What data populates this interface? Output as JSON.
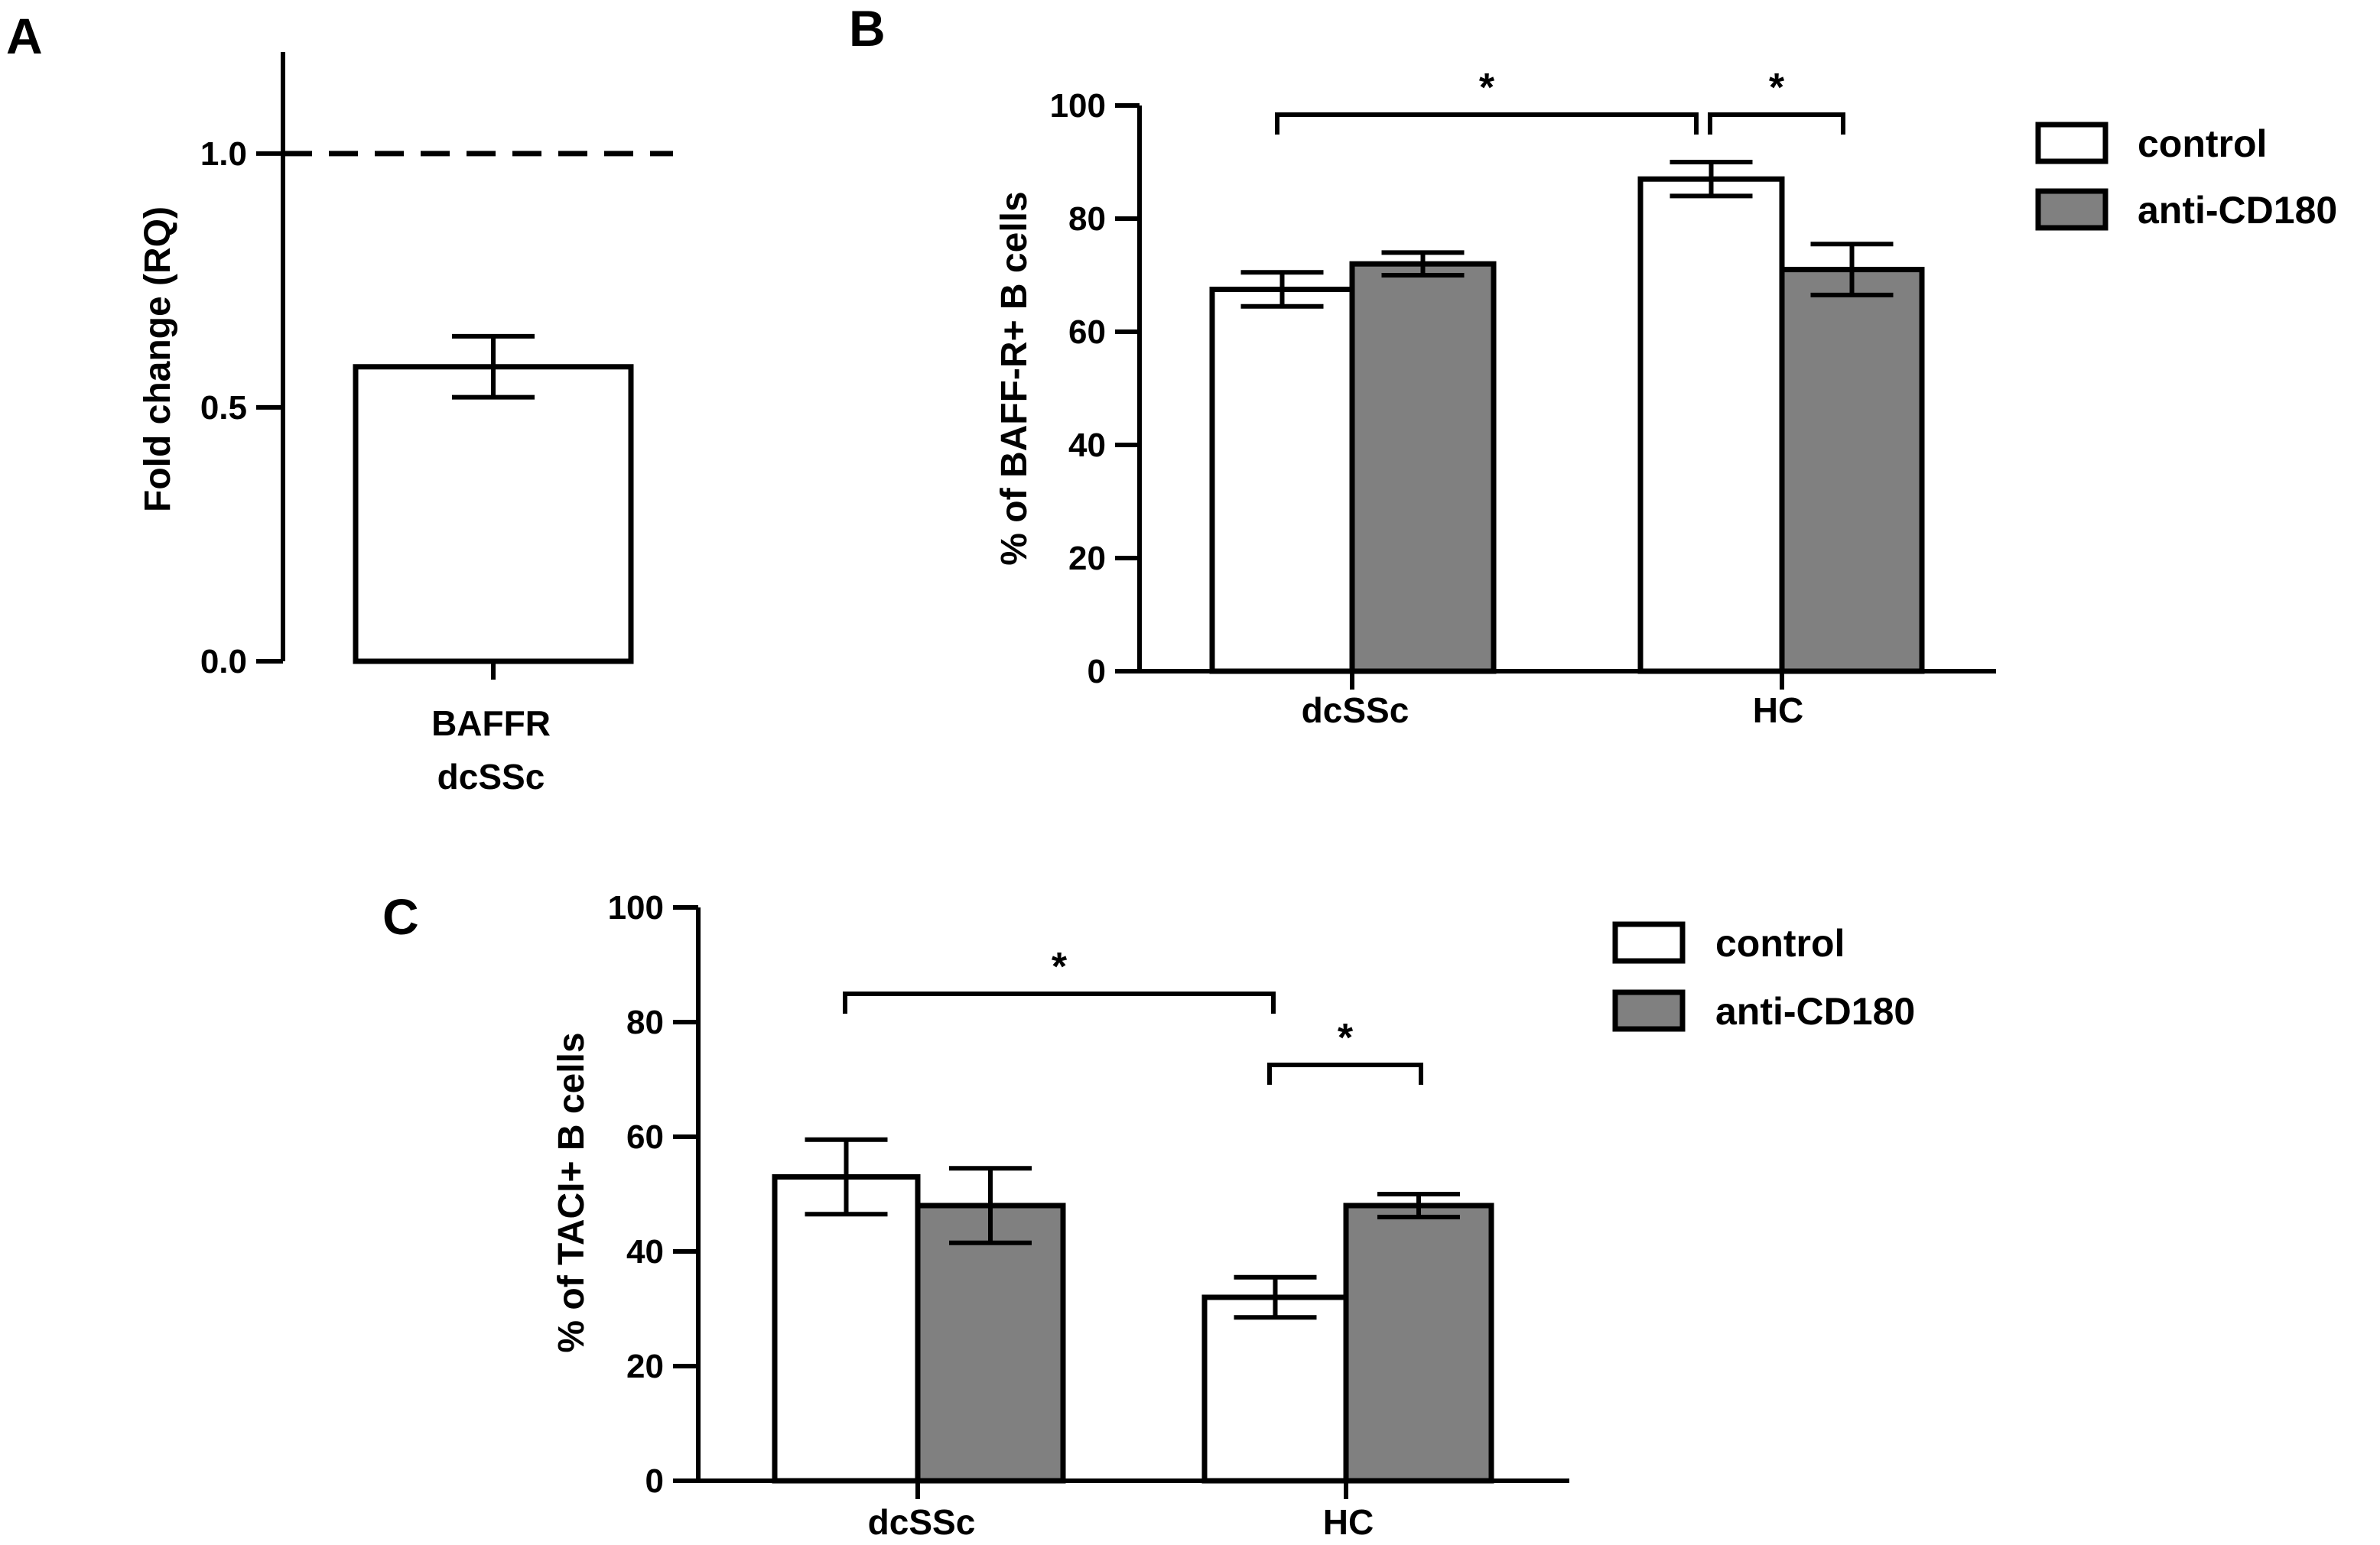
{
  "chart_data": [
    {
      "panel": "A",
      "type": "bar",
      "ylabel": "Fold change (RQ)",
      "ylim": [
        0,
        1.2
      ],
      "yticks": [
        "0.0",
        "0.5",
        "1.0"
      ],
      "reference_line": 1.0,
      "categories": [
        [
          "BAFFR",
          "dcSSc"
        ]
      ],
      "series": [
        {
          "name": "BAFFR dcSSc",
          "values": [
            0.58
          ],
          "errors": [
            0.06
          ],
          "color": "#ffffff"
        }
      ]
    },
    {
      "panel": "B",
      "type": "bar",
      "ylabel": "% of BAFF-R+ B cells",
      "ylim": [
        0,
        100
      ],
      "yticks": [
        "0",
        "20",
        "40",
        "60",
        "80",
        "100"
      ],
      "categories": [
        "dcSSc",
        "HC"
      ],
      "series": [
        {
          "name": "control",
          "values": [
            67.5,
            87
          ],
          "errors": [
            3,
            3
          ],
          "color": "#ffffff"
        },
        {
          "name": "anti-CD180",
          "values": [
            72,
            71
          ],
          "errors": [
            2,
            4.5
          ],
          "color": "#808080"
        }
      ],
      "significance": [
        {
          "from": "dcSSc control",
          "to": "HC control",
          "label": "*"
        },
        {
          "from": "HC control",
          "to": "HC anti-CD180",
          "label": "*"
        }
      ],
      "legend": [
        "control",
        "anti-CD180"
      ]
    },
    {
      "panel": "C",
      "type": "bar",
      "ylabel": "% of TACI+ B cells",
      "ylim": [
        0,
        100
      ],
      "yticks": [
        "0",
        "20",
        "40",
        "60",
        "80",
        "100"
      ],
      "categories": [
        "dcSSc",
        "HC"
      ],
      "series": [
        {
          "name": "control",
          "values": [
            53,
            32
          ],
          "errors": [
            6.5,
            3.5
          ],
          "color": "#ffffff"
        },
        {
          "name": "anti-CD180",
          "values": [
            48,
            48
          ],
          "errors": [
            6.5,
            2
          ],
          "color": "#808080"
        }
      ],
      "significance": [
        {
          "from": "dcSSc control",
          "to": "HC control",
          "label": "*"
        },
        {
          "from": "HC control",
          "to": "HC anti-CD180",
          "label": "*"
        }
      ],
      "legend": [
        "control",
        "anti-CD180"
      ]
    }
  ]
}
